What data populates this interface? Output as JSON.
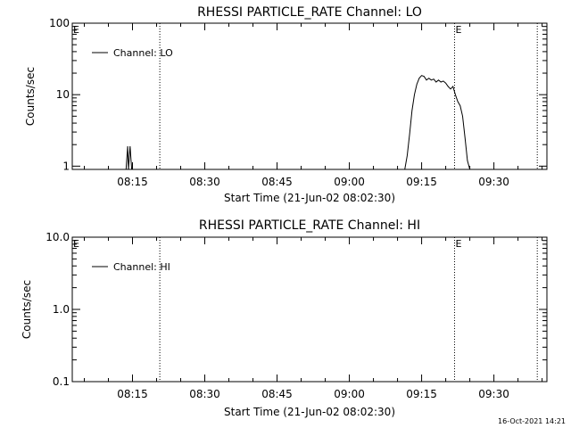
{
  "footer": {
    "timestamp": "16-Oct-2021 14:21"
  },
  "chart_data": [
    {
      "type": "line",
      "title": "RHESSI PARTICLE_RATE Channel: LO",
      "xlabel": "Start Time (21-Jun-02 08:02:30)",
      "ylabel": "Counts/sec",
      "yscale": "log",
      "ylim": [
        0.9,
        100
      ],
      "xlim": [
        "08:02:30",
        "09:41:00"
      ],
      "x_ticks": [
        "08:15",
        "08:30",
        "08:45",
        "09:00",
        "09:15",
        "09:30"
      ],
      "y_ticks": [
        "1",
        "10",
        "100"
      ],
      "legend": {
        "entries": [
          "Channel: LO"
        ],
        "position": "top-left"
      },
      "markers": [
        {
          "label": "E",
          "x": "08:02:30",
          "line": false
        },
        {
          "label": "",
          "x": "08:20:40",
          "line": true
        },
        {
          "label": "E",
          "x": "09:21:50",
          "line": true
        },
        {
          "label": "",
          "x": "09:39:00",
          "line": true
        }
      ],
      "series": [
        {
          "name": "Channel: LO",
          "segments": [
            [
              [
                "08:13:40",
                0.9
              ],
              [
                "08:14:00",
                1.9
              ],
              [
                "08:14:10",
                0.9
              ],
              [
                "08:14:30",
                1.9
              ],
              [
                "08:14:50",
                0.9
              ]
            ],
            [
              [
                "09:11:30",
                0.9
              ],
              [
                "09:12:00",
                1.4
              ],
              [
                "09:12:30",
                2.8
              ],
              [
                "09:13:00",
                6.0
              ],
              [
                "09:13:30",
                10.0
              ],
              [
                "09:14:00",
                14.0
              ],
              [
                "09:14:30",
                17.0
              ],
              [
                "09:15:00",
                18.5
              ],
              [
                "09:15:30",
                18.0
              ],
              [
                "09:16:00",
                16.0
              ],
              [
                "09:16:30",
                17.0
              ],
              [
                "09:17:00",
                16.0
              ],
              [
                "09:17:30",
                16.5
              ],
              [
                "09:18:00",
                15.0
              ],
              [
                "09:18:30",
                16.0
              ],
              [
                "09:19:00",
                15.0
              ],
              [
                "09:19:30",
                15.5
              ],
              [
                "09:20:00",
                14.5
              ],
              [
                "09:20:30",
                13.0
              ],
              [
                "09:21:00",
                12.0
              ],
              [
                "09:21:30",
                13.0
              ],
              [
                "09:22:00",
                10.0
              ],
              [
                "09:22:30",
                8.0
              ],
              [
                "09:23:00",
                7.0
              ],
              [
                "09:23:30",
                5.0
              ],
              [
                "09:24:00",
                2.5
              ],
              [
                "09:24:30",
                1.2
              ],
              [
                "09:25:00",
                0.9
              ]
            ]
          ]
        }
      ]
    },
    {
      "type": "line",
      "title": "RHESSI PARTICLE_RATE Channel: HI",
      "xlabel": "Start Time (21-Jun-02 08:02:30)",
      "ylabel": "Counts/sec",
      "yscale": "log",
      "ylim": [
        0.1,
        10
      ],
      "xlim": [
        "08:02:30",
        "09:41:00"
      ],
      "x_ticks": [
        "08:15",
        "08:30",
        "08:45",
        "09:00",
        "09:15",
        "09:30"
      ],
      "y_ticks": [
        "0.1",
        "1.0",
        "10.0"
      ],
      "legend": {
        "entries": [
          "Channel: HI"
        ],
        "position": "top-left"
      },
      "markers": [
        {
          "label": "E",
          "x": "08:02:30",
          "line": false
        },
        {
          "label": "",
          "x": "08:20:40",
          "line": true
        },
        {
          "label": "E",
          "x": "09:21:50",
          "line": true
        },
        {
          "label": "",
          "x": "09:39:00",
          "line": true
        }
      ],
      "series": [
        {
          "name": "Channel: HI",
          "segments": []
        }
      ]
    }
  ]
}
